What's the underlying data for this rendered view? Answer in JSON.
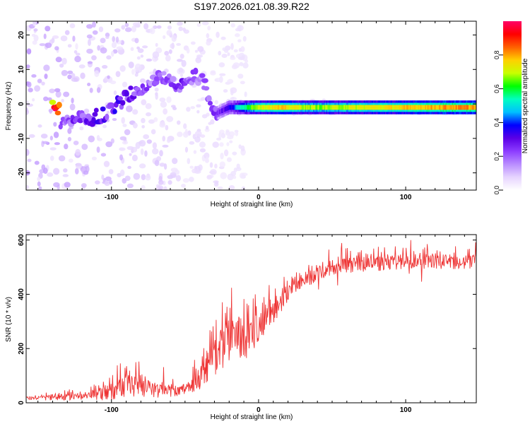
{
  "figure_title": "S197.2026.021.08.39.R22",
  "colors": {
    "snr_line": "#ee3333",
    "frame": "#000000",
    "spectrogram_bg": "#ffffff",
    "colormap": [
      "#ffffff",
      "#e6d4ff",
      "#b98cff",
      "#8c3cff",
      "#5a00e6",
      "#0000ff",
      "#00c0ff",
      "#00ffc0",
      "#00ff00",
      "#c8ff00",
      "#ffd000",
      "#ff6000",
      "#ff0000",
      "#ff0066"
    ]
  },
  "chart_data": [
    {
      "type": "heatmap",
      "title": "",
      "xlabel": "Height of straight line (km)",
      "ylabel": "Frequency (Hz)",
      "xlim": [
        -158,
        148
      ],
      "ylim": [
        -25,
        24
      ],
      "xticks": [
        -100,
        0,
        100
      ],
      "xtick_labels": [
        "-100",
        "0",
        "100"
      ],
      "yticks": [
        -20,
        -10,
        0,
        10,
        20
      ],
      "ytick_labels": [
        "-20",
        "-10",
        "0",
        "10",
        "20"
      ],
      "colorbar": {
        "label": "Normalized spectral amplitude",
        "range": [
          0,
          1
        ],
        "ticks": [
          0.0,
          0.2,
          0.4,
          0.6,
          0.8
        ],
        "tick_labels": [
          "0.0",
          "0.2",
          "0.4",
          "0.6",
          "0.8"
        ]
      },
      "main_trace_description": "Frequency vs height ridge",
      "ridge": [
        {
          "x": -135,
          "y": -6,
          "amp": 0.2
        },
        {
          "x": -125,
          "y": -5,
          "amp": 0.25
        },
        {
          "x": -115,
          "y": -4,
          "amp": 0.28
        },
        {
          "x": -105,
          "y": -3,
          "amp": 0.3
        },
        {
          "x": -98,
          "y": -1,
          "amp": 0.3
        },
        {
          "x": -90,
          "y": 2,
          "amp": 0.28
        },
        {
          "x": -82,
          "y": 4,
          "amp": 0.25
        },
        {
          "x": -75,
          "y": 6,
          "amp": 0.22
        },
        {
          "x": -68,
          "y": 8,
          "amp": 0.2
        },
        {
          "x": -60,
          "y": 6,
          "amp": 0.22
        },
        {
          "x": -52,
          "y": 5,
          "amp": 0.25
        },
        {
          "x": -45,
          "y": 8,
          "amp": 0.22
        },
        {
          "x": -38,
          "y": 7,
          "amp": 0.2
        },
        {
          "x": -30,
          "y": -3,
          "amp": 0.25
        },
        {
          "x": -20,
          "y": -1,
          "amp": 0.35
        },
        {
          "x": -10,
          "y": -1,
          "amp": 0.6
        },
        {
          "x": 0,
          "y": -1,
          "amp": 0.75
        },
        {
          "x": 15,
          "y": -1,
          "amp": 0.8
        },
        {
          "x": 40,
          "y": -1,
          "amp": 0.7
        },
        {
          "x": 70,
          "y": -1,
          "amp": 0.75
        },
        {
          "x": 100,
          "y": -1,
          "amp": 0.8
        },
        {
          "x": 130,
          "y": -1,
          "amp": 0.85
        },
        {
          "x": 148,
          "y": -1,
          "amp": 0.85
        }
      ]
    },
    {
      "type": "line",
      "title": "",
      "xlabel": "Height of straight line (km)",
      "ylabel": "SNR (10 * v/v)",
      "xlim": [
        -158,
        148
      ],
      "ylim": [
        0,
        620
      ],
      "xticks": [
        -100,
        0,
        100
      ],
      "xtick_labels": [
        "-100",
        "0",
        "100"
      ],
      "yticks": [
        0,
        200,
        400,
        600
      ],
      "ytick_labels": [
        "0",
        "200",
        "400",
        "600"
      ],
      "series": [
        {
          "name": "SNR",
          "envelope": [
            {
              "x": -158,
              "base": 15,
              "spike": 20
            },
            {
              "x": -120,
              "base": 25,
              "spike": 40
            },
            {
              "x": -100,
              "base": 40,
              "spike": 90
            },
            {
              "x": -90,
              "base": 60,
              "spike": 150
            },
            {
              "x": -80,
              "base": 55,
              "spike": 100
            },
            {
              "x": -65,
              "base": 40,
              "spike": 70
            },
            {
              "x": -50,
              "base": 50,
              "spike": 60
            },
            {
              "x": -40,
              "base": 90,
              "spike": 120
            },
            {
              "x": -30,
              "base": 170,
              "spike": 200
            },
            {
              "x": -20,
              "base": 230,
              "spike": 230
            },
            {
              "x": -10,
              "base": 240,
              "spike": 250
            },
            {
              "x": 0,
              "base": 270,
              "spike": 150
            },
            {
              "x": 10,
              "base": 330,
              "spike": 120
            },
            {
              "x": 20,
              "base": 400,
              "spike": 90
            },
            {
              "x": 35,
              "base": 460,
              "spike": 80
            },
            {
              "x": 50,
              "base": 500,
              "spike": 80
            },
            {
              "x": 70,
              "base": 510,
              "spike": 80
            },
            {
              "x": 100,
              "base": 520,
              "spike": 80
            },
            {
              "x": 148,
              "base": 520,
              "spike": 80
            }
          ]
        }
      ]
    }
  ]
}
